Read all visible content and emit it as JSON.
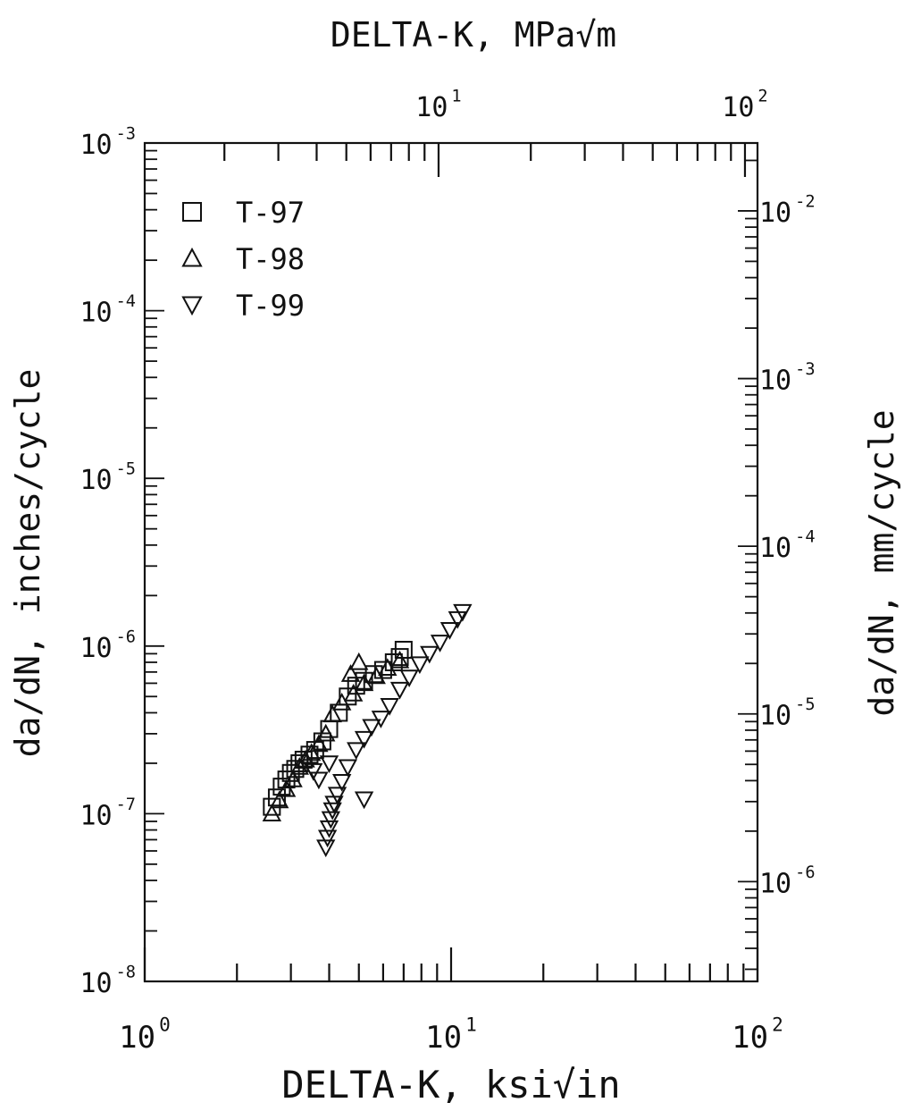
{
  "chart_data": {
    "type": "scatter",
    "x_axis_bottom": {
      "label": "DELTA-K, ksi√in",
      "scale": "log",
      "range": [
        1,
        100
      ],
      "ticks": [
        {
          "base": "10",
          "exp": "0"
        },
        {
          "base": "10",
          "exp": "1"
        },
        {
          "base": "10",
          "exp": "2"
        }
      ]
    },
    "x_axis_top": {
      "label": "DELTA-K, MPa√m",
      "scale": "log",
      "range": [
        1.0988,
        109.88
      ],
      "ticks": [
        {
          "base": "10",
          "exp": "1",
          "value": 10
        },
        {
          "base": "10",
          "exp": "2",
          "value": 100
        }
      ]
    },
    "y_axis_left": {
      "label": "da/dN, inches/cycle",
      "scale": "log",
      "range": [
        1e-08,
        0.001
      ],
      "ticks": [
        {
          "base": "10",
          "exp": "-8",
          "value": 1e-08
        },
        {
          "base": "10",
          "exp": "-7",
          "value": 1e-07
        },
        {
          "base": "10",
          "exp": "-6",
          "value": 1e-06
        },
        {
          "base": "10",
          "exp": "-5",
          "value": 1e-05
        },
        {
          "base": "10",
          "exp": "-4",
          "value": 0.0001
        },
        {
          "base": "10",
          "exp": "-3",
          "value": 0.001
        }
      ]
    },
    "y_axis_right": {
      "label": "da/dN, mm/cycle",
      "scale": "log",
      "range": [
        2.54e-07,
        0.0254
      ],
      "ticks": [
        {
          "base": "10",
          "exp": "-6",
          "value": 1e-06
        },
        {
          "base": "10",
          "exp": "-5",
          "value": 1e-05
        },
        {
          "base": "10",
          "exp": "-4",
          "value": 0.0001
        },
        {
          "base": "10",
          "exp": "-3",
          "value": 0.001
        },
        {
          "base": "10",
          "exp": "-2",
          "value": 0.01
        }
      ]
    },
    "legend_position": "top-left",
    "grid": false,
    "series": [
      {
        "name": "T-97",
        "marker": "square",
        "points": [
          [
            2.6,
            1.1e-07
          ],
          [
            2.7,
            1.25e-07
          ],
          [
            2.8,
            1.45e-07
          ],
          [
            2.9,
            1.6e-07
          ],
          [
            3.0,
            1.75e-07
          ],
          [
            3.1,
            1.85e-07
          ],
          [
            3.2,
            2e-07
          ],
          [
            3.3,
            2.1e-07
          ],
          [
            3.45,
            2.25e-07
          ],
          [
            3.6,
            2.4e-07
          ],
          [
            3.8,
            2.7e-07
          ],
          [
            4.0,
            3.2e-07
          ],
          [
            4.3,
            4e-07
          ],
          [
            4.6,
            5e-07
          ],
          [
            4.9,
            5.8e-07
          ],
          [
            5.2,
            6.2e-07
          ],
          [
            5.6,
            6.8e-07
          ],
          [
            6.0,
            7.2e-07
          ],
          [
            6.5,
            8e-07
          ],
          [
            7.0,
            9.5e-07
          ],
          [
            6.8,
            8.6e-07
          ]
        ]
      },
      {
        "name": "T-98",
        "marker": "triangle-up",
        "points": [
          [
            2.6,
            1e-07
          ],
          [
            2.75,
            1.2e-07
          ],
          [
            2.9,
            1.4e-07
          ],
          [
            3.05,
            1.6e-07
          ],
          [
            3.2,
            1.9e-07
          ],
          [
            3.35,
            2.1e-07
          ],
          [
            3.5,
            2.3e-07
          ],
          [
            3.7,
            2.6e-07
          ],
          [
            3.9,
            3e-07
          ],
          [
            4.1,
            3.9e-07
          ],
          [
            4.4,
            4.6e-07
          ],
          [
            4.8,
            5.2e-07
          ],
          [
            5.2,
            6e-07
          ],
          [
            5.7,
            6.6e-07
          ],
          [
            6.2,
            7.4e-07
          ],
          [
            4.7,
            6.8e-07
          ],
          [
            5.0,
            8e-07
          ],
          [
            6.8,
            8.2e-07
          ]
        ]
      },
      {
        "name": "T-99",
        "marker": "triangle-down",
        "points": [
          [
            3.9,
            6.3e-08
          ],
          [
            3.95,
            7.2e-08
          ],
          [
            4.0,
            8.2e-08
          ],
          [
            4.05,
            9.3e-08
          ],
          [
            4.1,
            1.05e-07
          ],
          [
            4.15,
            1.15e-07
          ],
          [
            4.25,
            1.3e-07
          ],
          [
            4.4,
            1.55e-07
          ],
          [
            4.6,
            1.9e-07
          ],
          [
            4.9,
            2.4e-07
          ],
          [
            5.2,
            2.8e-07
          ],
          [
            5.5,
            3.3e-07
          ],
          [
            5.9,
            3.7e-07
          ],
          [
            6.3,
            4.4e-07
          ],
          [
            6.8,
            5.5e-07
          ],
          [
            7.3,
            6.5e-07
          ],
          [
            7.9,
            7.8e-07
          ],
          [
            8.5,
            9e-07
          ],
          [
            9.2,
            1.05e-06
          ],
          [
            9.9,
            1.25e-06
          ],
          [
            10.5,
            1.45e-06
          ],
          [
            10.9,
            1.6e-06
          ],
          [
            5.2,
            1.22e-07
          ],
          [
            3.7,
            1.6e-07
          ],
          [
            3.55,
            1.8e-07
          ],
          [
            4.0,
            2e-07
          ]
        ]
      }
    ]
  }
}
